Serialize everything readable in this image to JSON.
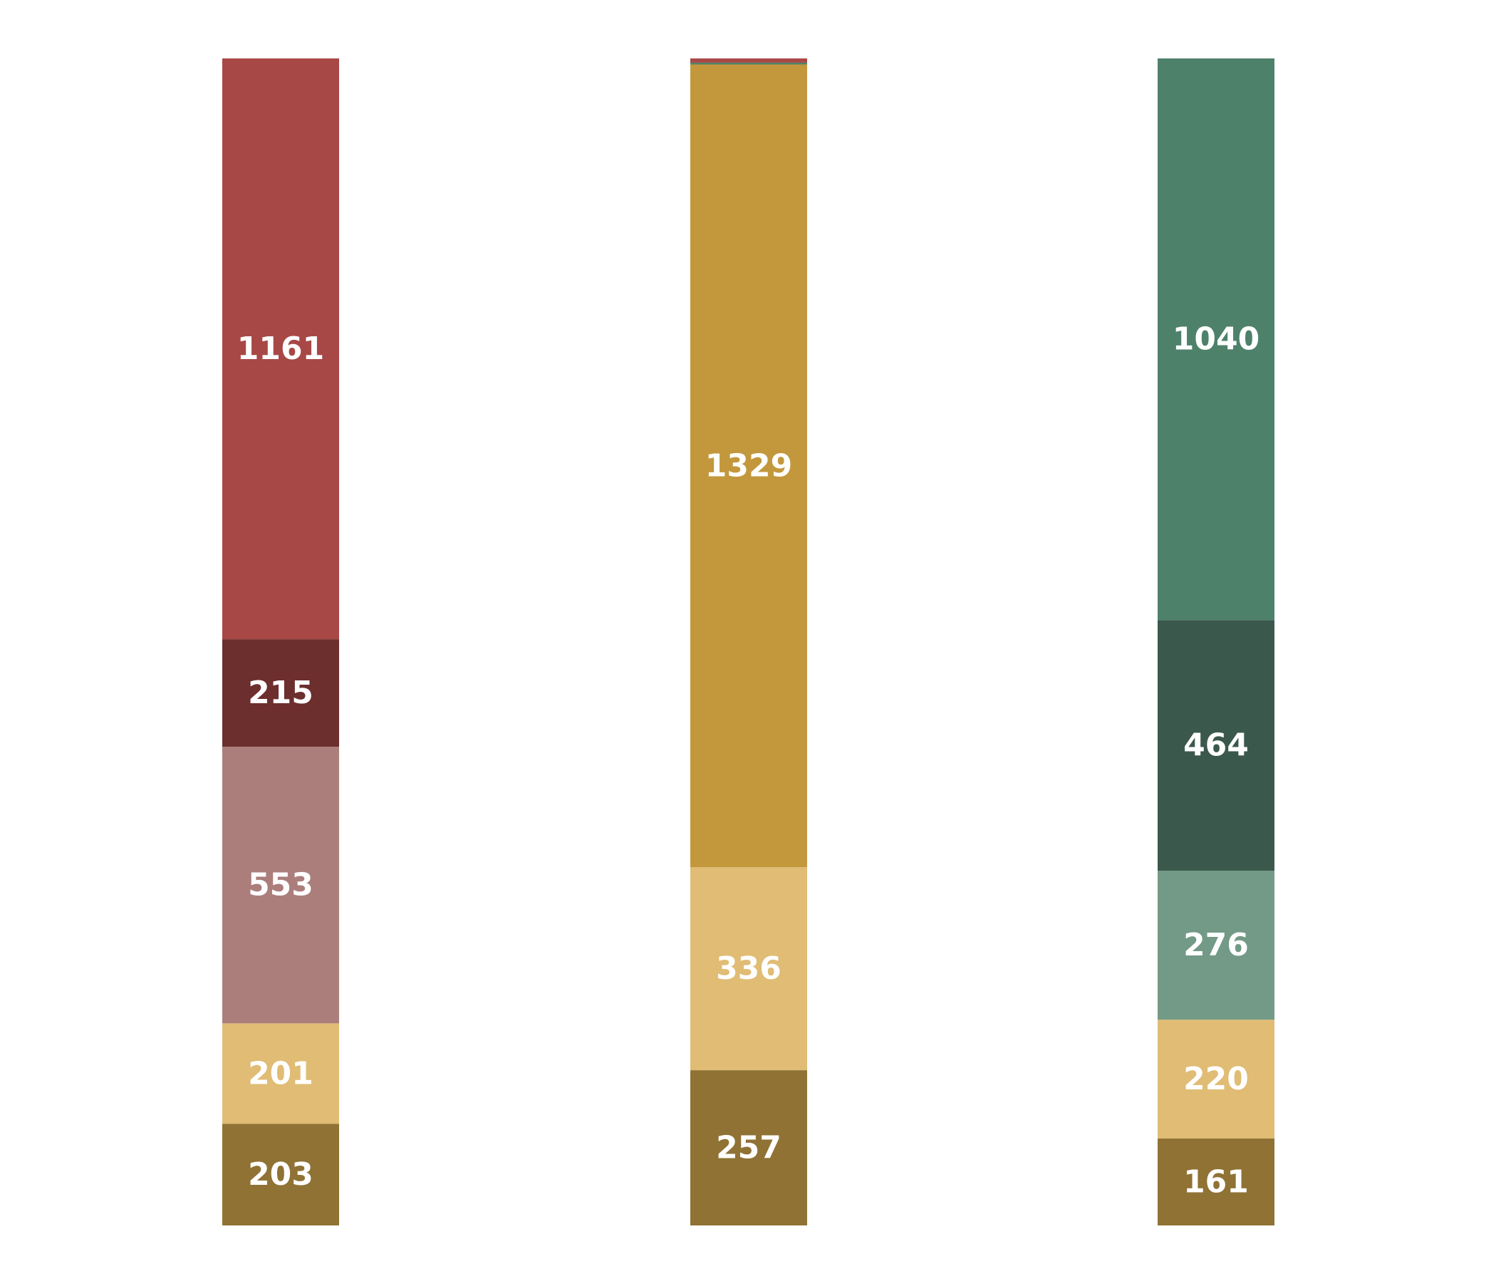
{
  "chart_data": {
    "type": "bar",
    "stacked": true,
    "normalized": true,
    "title": "",
    "xlabel": "",
    "ylabel": "",
    "grid": false,
    "legend": "none",
    "axes_visible": false,
    "ylim": [
      0,
      1
    ],
    "categories": [
      "",
      "",
      ""
    ],
    "stacks": [
      {
        "segments": [
          {
            "value": 203,
            "label": "203",
            "color": "#8f7234"
          },
          {
            "value": 201,
            "label": "201",
            "color": "#e0bc74"
          },
          {
            "value": 553,
            "label": "553",
            "color": "#ab7e7c"
          },
          {
            "value": 215,
            "label": "215",
            "color": "#6d2e2e"
          },
          {
            "value": 1161,
            "label": "1161",
            "color": "#a84846"
          }
        ]
      },
      {
        "segments": [
          {
            "value": 257,
            "label": "257",
            "color": "#8f7234"
          },
          {
            "value": 336,
            "label": "336",
            "color": "#e0bc74"
          },
          {
            "value": 1329,
            "label": "1329",
            "color": "#c3983c"
          },
          {
            "value": 3,
            "label": "",
            "color": "#4e816a"
          },
          {
            "value": 7,
            "label": "",
            "color": "#a84846"
          }
        ]
      },
      {
        "segments": [
          {
            "value": 161,
            "label": "161",
            "color": "#8f7234"
          },
          {
            "value": 220,
            "label": "220",
            "color": "#e0bc74"
          },
          {
            "value": 276,
            "label": "276",
            "color": "#739a86"
          },
          {
            "value": 464,
            "label": "464",
            "color": "#3b584c"
          },
          {
            "value": 1040,
            "label": "1040",
            "color": "#4e816a"
          }
        ]
      }
    ],
    "label_color": "#ffffff"
  }
}
